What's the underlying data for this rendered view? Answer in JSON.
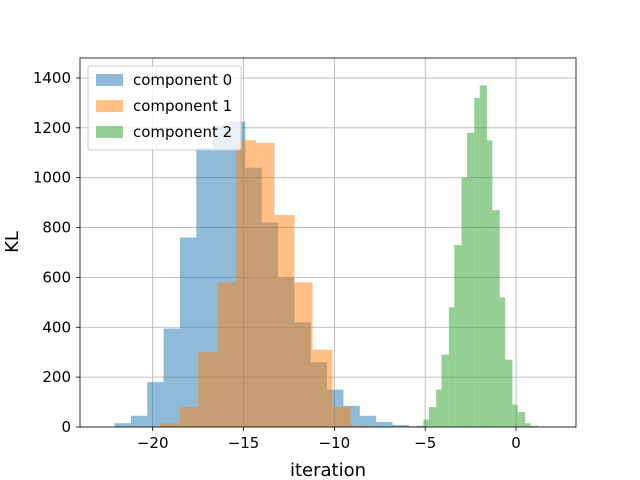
{
  "chart_data": {
    "type": "bar",
    "subtype": "histogram",
    "xlabel": "iteration",
    "ylabel": "KL",
    "xlim": [
      -24,
      3.3
    ],
    "ylim": [
      0,
      1480
    ],
    "xticks": [
      -20,
      -15,
      -10,
      -5,
      0
    ],
    "xtick_labels": [
      "−20",
      "−15",
      "−10",
      "−5",
      "0"
    ],
    "yticks": [
      0,
      200,
      400,
      600,
      800,
      1000,
      1200,
      1400
    ],
    "grid": true,
    "legend_position": "top-left",
    "series": [
      {
        "name": "component 0",
        "color": "#1f77b4",
        "alpha": 0.5,
        "bins": [
          [
            -22.1,
            -21.2,
            15
          ],
          [
            -21.2,
            -20.3,
            45
          ],
          [
            -20.3,
            -19.4,
            180
          ],
          [
            -19.4,
            -18.5,
            395
          ],
          [
            -18.5,
            -17.6,
            760
          ],
          [
            -17.6,
            -16.7,
            1120
          ],
          [
            -16.7,
            -15.8,
            1210
          ],
          [
            -15.8,
            -14.9,
            1225
          ],
          [
            -14.9,
            -14.0,
            1040
          ],
          [
            -14.0,
            -13.1,
            820
          ],
          [
            -13.1,
            -12.2,
            600
          ],
          [
            -12.2,
            -11.3,
            420
          ],
          [
            -11.3,
            -10.4,
            260
          ],
          [
            -10.4,
            -9.5,
            150
          ],
          [
            -9.5,
            -8.6,
            85
          ],
          [
            -8.6,
            -7.7,
            45
          ],
          [
            -7.7,
            -6.8,
            20
          ],
          [
            -6.8,
            -5.9,
            8
          ],
          [
            -5.9,
            -5.0,
            3
          ]
        ]
      },
      {
        "name": "component 1",
        "color": "#ff7f0e",
        "alpha": 0.5,
        "bins": [
          [
            -19.6,
            -18.5,
            15
          ],
          [
            -18.5,
            -17.5,
            80
          ],
          [
            -17.5,
            -16.4,
            300
          ],
          [
            -16.4,
            -15.4,
            580
          ],
          [
            -15.4,
            -14.3,
            1150
          ],
          [
            -14.3,
            -13.3,
            1140
          ],
          [
            -13.3,
            -12.2,
            850
          ],
          [
            -12.2,
            -11.2,
            580
          ],
          [
            -11.2,
            -10.1,
            310
          ],
          [
            -10.1,
            -9.1,
            80
          ],
          [
            -9.1,
            -8.0,
            5
          ]
        ]
      },
      {
        "name": "component 2",
        "color": "#2ca02c",
        "alpha": 0.5,
        "bins": [
          [
            -5.5,
            -5.1,
            5
          ],
          [
            -5.1,
            -4.8,
            30
          ],
          [
            -4.8,
            -4.4,
            80
          ],
          [
            -4.4,
            -4.1,
            150
          ],
          [
            -4.1,
            -3.7,
            290
          ],
          [
            -3.7,
            -3.4,
            480
          ],
          [
            -3.4,
            -3.0,
            730
          ],
          [
            -3.0,
            -2.7,
            1000
          ],
          [
            -2.7,
            -2.3,
            1180
          ],
          [
            -2.3,
            -2.0,
            1320
          ],
          [
            -2.0,
            -1.6,
            1370
          ],
          [
            -1.6,
            -1.3,
            1150
          ],
          [
            -1.3,
            -0.9,
            870
          ],
          [
            -0.9,
            -0.6,
            520
          ],
          [
            -0.6,
            -0.2,
            270
          ],
          [
            -0.2,
            0.1,
            90
          ],
          [
            0.1,
            0.5,
            60
          ],
          [
            0.5,
            0.8,
            15
          ],
          [
            0.8,
            1.2,
            5
          ]
        ]
      }
    ]
  }
}
